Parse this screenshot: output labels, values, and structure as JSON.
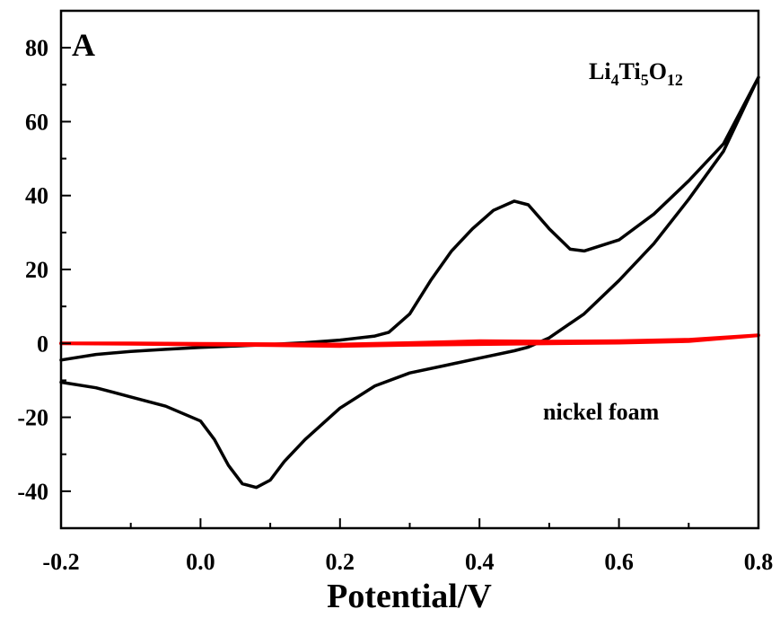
{
  "chart_data": {
    "type": "line",
    "title": "",
    "panel_label": "A",
    "xlabel": "Potential/V",
    "ylabel": "",
    "xlim": [
      -0.2,
      0.8
    ],
    "ylim": [
      -50,
      90
    ],
    "xticks": [
      "-0.2",
      "0.0",
      "0.2",
      "0.4",
      "0.6",
      "0.8"
    ],
    "yticks": [
      "-40",
      "-20",
      "0",
      "20",
      "40",
      "60",
      "80"
    ],
    "grid": false,
    "legend": "none",
    "annotations": {
      "compound": {
        "main1": "Li",
        "sub1": "4",
        "main2": "Ti",
        "sub2": "5",
        "main3": "O",
        "sub3": "12"
      },
      "substrate": "nickel foam"
    },
    "series": [
      {
        "color": "#000000",
        "points": [
          [
            -0.2,
            -4.5
          ],
          [
            -0.15,
            -3.0
          ],
          [
            -0.1,
            -2.2
          ],
          [
            -0.05,
            -1.6
          ],
          [
            0.0,
            -1.1
          ],
          [
            0.05,
            -0.7
          ],
          [
            0.1,
            -0.3
          ],
          [
            0.15,
            0.2
          ],
          [
            0.2,
            0.9
          ],
          [
            0.25,
            2.0
          ],
          [
            0.27,
            3.0
          ],
          [
            0.3,
            8.0
          ],
          [
            0.33,
            17.0
          ],
          [
            0.36,
            25.0
          ],
          [
            0.39,
            31.0
          ],
          [
            0.42,
            36.0
          ],
          [
            0.45,
            38.5
          ],
          [
            0.47,
            37.5
          ],
          [
            0.5,
            31.0
          ],
          [
            0.53,
            25.5
          ],
          [
            0.55,
            25.0
          ],
          [
            0.6,
            28.0
          ],
          [
            0.65,
            35.0
          ],
          [
            0.7,
            44.0
          ],
          [
            0.75,
            54.0
          ],
          [
            0.8,
            72.0
          ],
          [
            0.75,
            52.0
          ],
          [
            0.7,
            39.0
          ],
          [
            0.65,
            27.0
          ],
          [
            0.6,
            17.0
          ],
          [
            0.55,
            8.0
          ],
          [
            0.5,
            1.5
          ],
          [
            0.47,
            -1.0
          ],
          [
            0.45,
            -2.0
          ],
          [
            0.4,
            -4.0
          ],
          [
            0.35,
            -6.0
          ],
          [
            0.3,
            -8.0
          ],
          [
            0.25,
            -11.5
          ],
          [
            0.2,
            -17.5
          ],
          [
            0.15,
            -26.0
          ],
          [
            0.12,
            -32.0
          ],
          [
            0.1,
            -37.0
          ],
          [
            0.08,
            -39.0
          ],
          [
            0.06,
            -38.0
          ],
          [
            0.04,
            -33.0
          ],
          [
            0.02,
            -26.0
          ],
          [
            0.0,
            -21.0
          ],
          [
            -0.05,
            -17.0
          ],
          [
            -0.1,
            -14.5
          ],
          [
            -0.15,
            -12.0
          ],
          [
            -0.2,
            -10.5
          ]
        ]
      },
      {
        "color": "#ff0000",
        "points": [
          [
            -0.2,
            0.0
          ],
          [
            -0.1,
            0.0
          ],
          [
            0.0,
            -0.1
          ],
          [
            0.1,
            -0.2
          ],
          [
            0.2,
            -0.3
          ],
          [
            0.3,
            0.1
          ],
          [
            0.4,
            0.6
          ],
          [
            0.5,
            0.5
          ],
          [
            0.6,
            0.6
          ],
          [
            0.7,
            1.0
          ],
          [
            0.8,
            2.2
          ],
          [
            0.7,
            0.6
          ],
          [
            0.6,
            0.2
          ],
          [
            0.5,
            0.0
          ],
          [
            0.4,
            -0.2
          ],
          [
            0.3,
            -0.4
          ],
          [
            0.2,
            -0.7
          ],
          [
            0.1,
            -0.5
          ],
          [
            0.0,
            -0.3
          ],
          [
            -0.1,
            -0.1
          ],
          [
            -0.2,
            0.0
          ]
        ]
      }
    ]
  }
}
